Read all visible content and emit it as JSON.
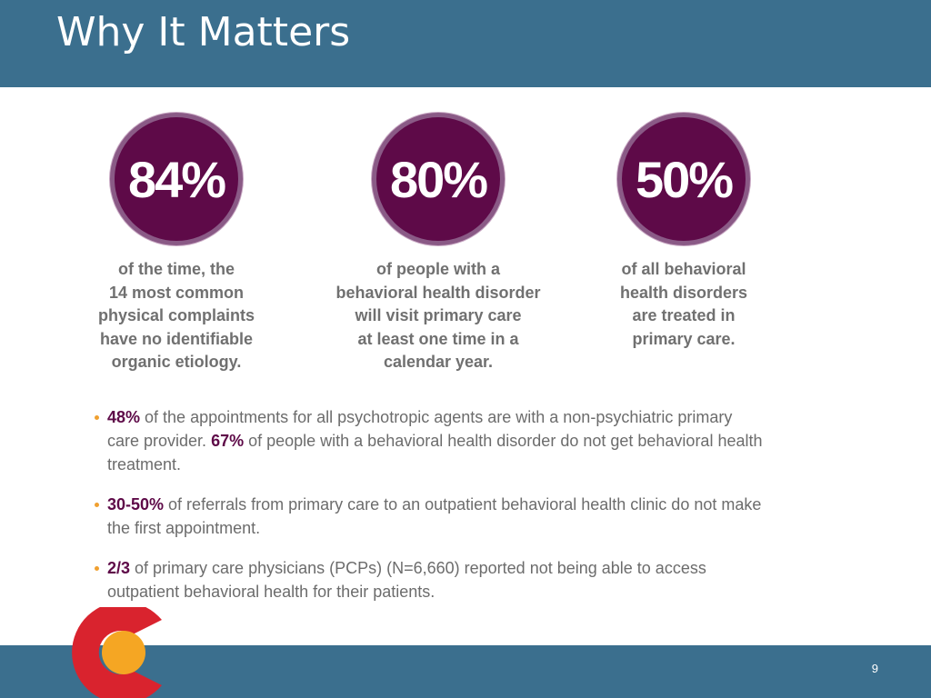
{
  "slide": {
    "title": "Why It Matters",
    "page_number": "9"
  },
  "colors": {
    "header_bar": "#3b6f8e",
    "circle_fill": "#5e0a48",
    "highlight": "#5e0a48",
    "body_text": "#6c6c6c",
    "bullet": "#f0a030",
    "logo_red": "#d9232e",
    "logo_gold": "#f5a623"
  },
  "stats": [
    {
      "value": "84%",
      "text": "of the time, the\n14 most common\nphysical complaints\nhave no identifiable\norganic etiology."
    },
    {
      "value": "80%",
      "text": "of people with a\nbehavioral health disorder\nwill visit primary care\nat least one time in a\ncalendar year."
    },
    {
      "value": "50%",
      "text": "of all behavioral\nhealth disorders\nare treated in\nprimary care."
    }
  ],
  "bullets": [
    {
      "hl1": "48%",
      "t1": " of the appointments for all psychotropic agents are with a non-psychiatric primary care provider. ",
      "hl2": "67%",
      "t2": " of people with a behavioral health disorder do not get behavioral health treatment."
    },
    {
      "hl1": "30-50%",
      "t1": " of referrals from primary care to an outpatient behavioral health clinic do not make the first appointment."
    },
    {
      "hl1": "2/3",
      "t1": " of primary care physicians (PCPs) (N=6,660) reported not being able to access outpatient behavioral health for their patients."
    }
  ],
  "logo": {
    "icon": "colorado-c-logo-icon"
  }
}
